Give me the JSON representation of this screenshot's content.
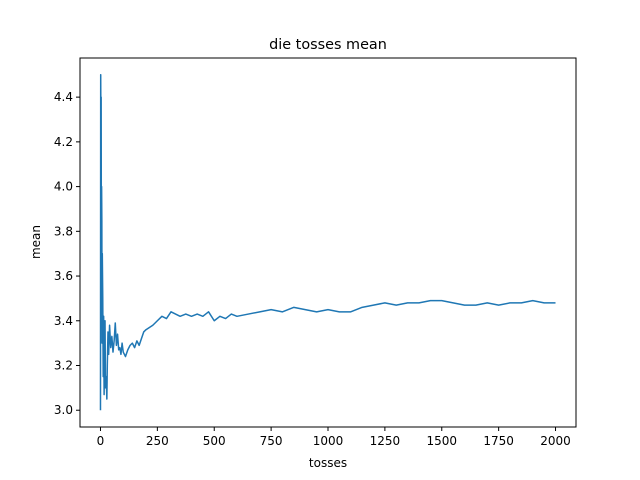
{
  "chart_data": {
    "type": "line",
    "title": "die tosses mean",
    "xlabel": "tosses",
    "ylabel": "mean",
    "xlim": [
      -90,
      2090
    ],
    "ylim": [
      2.925,
      4.575
    ],
    "xticks": [
      0,
      250,
      500,
      750,
      1000,
      1250,
      1500,
      1750,
      2000
    ],
    "yticks": [
      3.0,
      3.2,
      3.4,
      3.6,
      3.8,
      4.0,
      4.2,
      4.4
    ],
    "ytick_labels": [
      "3.0",
      "3.2",
      "3.4",
      "3.6",
      "3.8",
      "4.0",
      "4.2",
      "4.4"
    ],
    "grid": false,
    "line_color": "#1f77b4",
    "series": [
      {
        "x": [
          0,
          1,
          2,
          3,
          4,
          5,
          6,
          7,
          8,
          10,
          12,
          14,
          16,
          18,
          20,
          22,
          25,
          28,
          30,
          33,
          36,
          40,
          45,
          50,
          55,
          60,
          65,
          70,
          75,
          80,
          85,
          90,
          95,
          100,
          110,
          120,
          130,
          140,
          150,
          160,
          170,
          180,
          190,
          200,
          215,
          230,
          250,
          270,
          290,
          310,
          330,
          350,
          375,
          400,
          425,
          450,
          475,
          500,
          525,
          550,
          575,
          600,
          650,
          700,
          750,
          800,
          850,
          900,
          950,
          1000,
          1050,
          1100,
          1150,
          1200,
          1250,
          1300,
          1350,
          1400,
          1450,
          1500,
          1550,
          1600,
          1650,
          1700,
          1750,
          1800,
          1850,
          1900,
          1950,
          2000
        ],
        "values": [
          3.0,
          4.5,
          4.25,
          4.4,
          3.6,
          4.0,
          3.85,
          3.3,
          3.7,
          3.5,
          3.15,
          3.42,
          3.07,
          3.3,
          3.4,
          3.1,
          3.15,
          3.05,
          3.2,
          3.35,
          3.25,
          3.38,
          3.28,
          3.33,
          3.26,
          3.31,
          3.39,
          3.29,
          3.34,
          3.27,
          3.28,
          3.25,
          3.3,
          3.26,
          3.24,
          3.27,
          3.29,
          3.3,
          3.28,
          3.31,
          3.29,
          3.32,
          3.35,
          3.36,
          3.37,
          3.38,
          3.4,
          3.42,
          3.41,
          3.44,
          3.43,
          3.42,
          3.43,
          3.42,
          3.43,
          3.42,
          3.44,
          3.4,
          3.42,
          3.41,
          3.43,
          3.42,
          3.43,
          3.44,
          3.45,
          3.44,
          3.46,
          3.45,
          3.44,
          3.45,
          3.44,
          3.44,
          3.46,
          3.47,
          3.48,
          3.47,
          3.48,
          3.48,
          3.49,
          3.49,
          3.48,
          3.47,
          3.47,
          3.48,
          3.47,
          3.48,
          3.48,
          3.49,
          3.48,
          3.48
        ]
      }
    ]
  }
}
